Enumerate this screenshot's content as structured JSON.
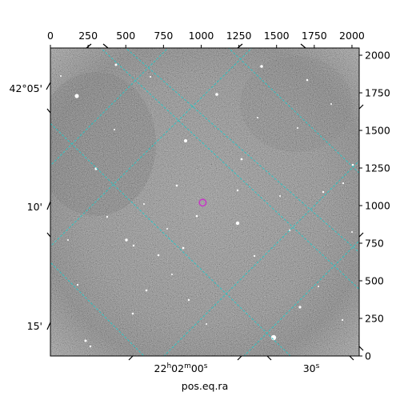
{
  "chart_data": {
    "type": "image",
    "colormap": "grayscale",
    "xlabel": "pos.eq.ra",
    "pixel_axes": {
      "x_range": [
        0,
        2048
      ],
      "y_range": [
        0,
        2048
      ],
      "x_ticks": [
        "0",
        "250",
        "500",
        "750",
        "1000",
        "1250",
        "1500",
        "1750",
        "2000"
      ],
      "y_ticks": [
        "0",
        "250",
        "500",
        "750",
        "1000",
        "1250",
        "1500",
        "1750",
        "2000"
      ],
      "x_tick_values": [
        0,
        250,
        500,
        750,
        1000,
        1250,
        1500,
        1750,
        2000
      ],
      "y_tick_values": [
        0,
        250,
        500,
        750,
        1000,
        1250,
        1500,
        1750,
        2000
      ]
    },
    "world_axes": {
      "ra_ticks": [
        {
          "label": "22h02m00s",
          "main": "22",
          "h": "h",
          "m_val": "02",
          "m": "m",
          "s_val": "00",
          "s": "s"
        },
        {
          "label": "30s",
          "main": "30",
          "s": "s"
        }
      ],
      "dec_ticks": [
        "42°05'",
        "10'",
        "15'"
      ]
    },
    "grid_color": "#2ec4c4",
    "marker": {
      "shape": "circle",
      "color": "#c43cc4",
      "x": 1010,
      "y": 1020
    }
  }
}
